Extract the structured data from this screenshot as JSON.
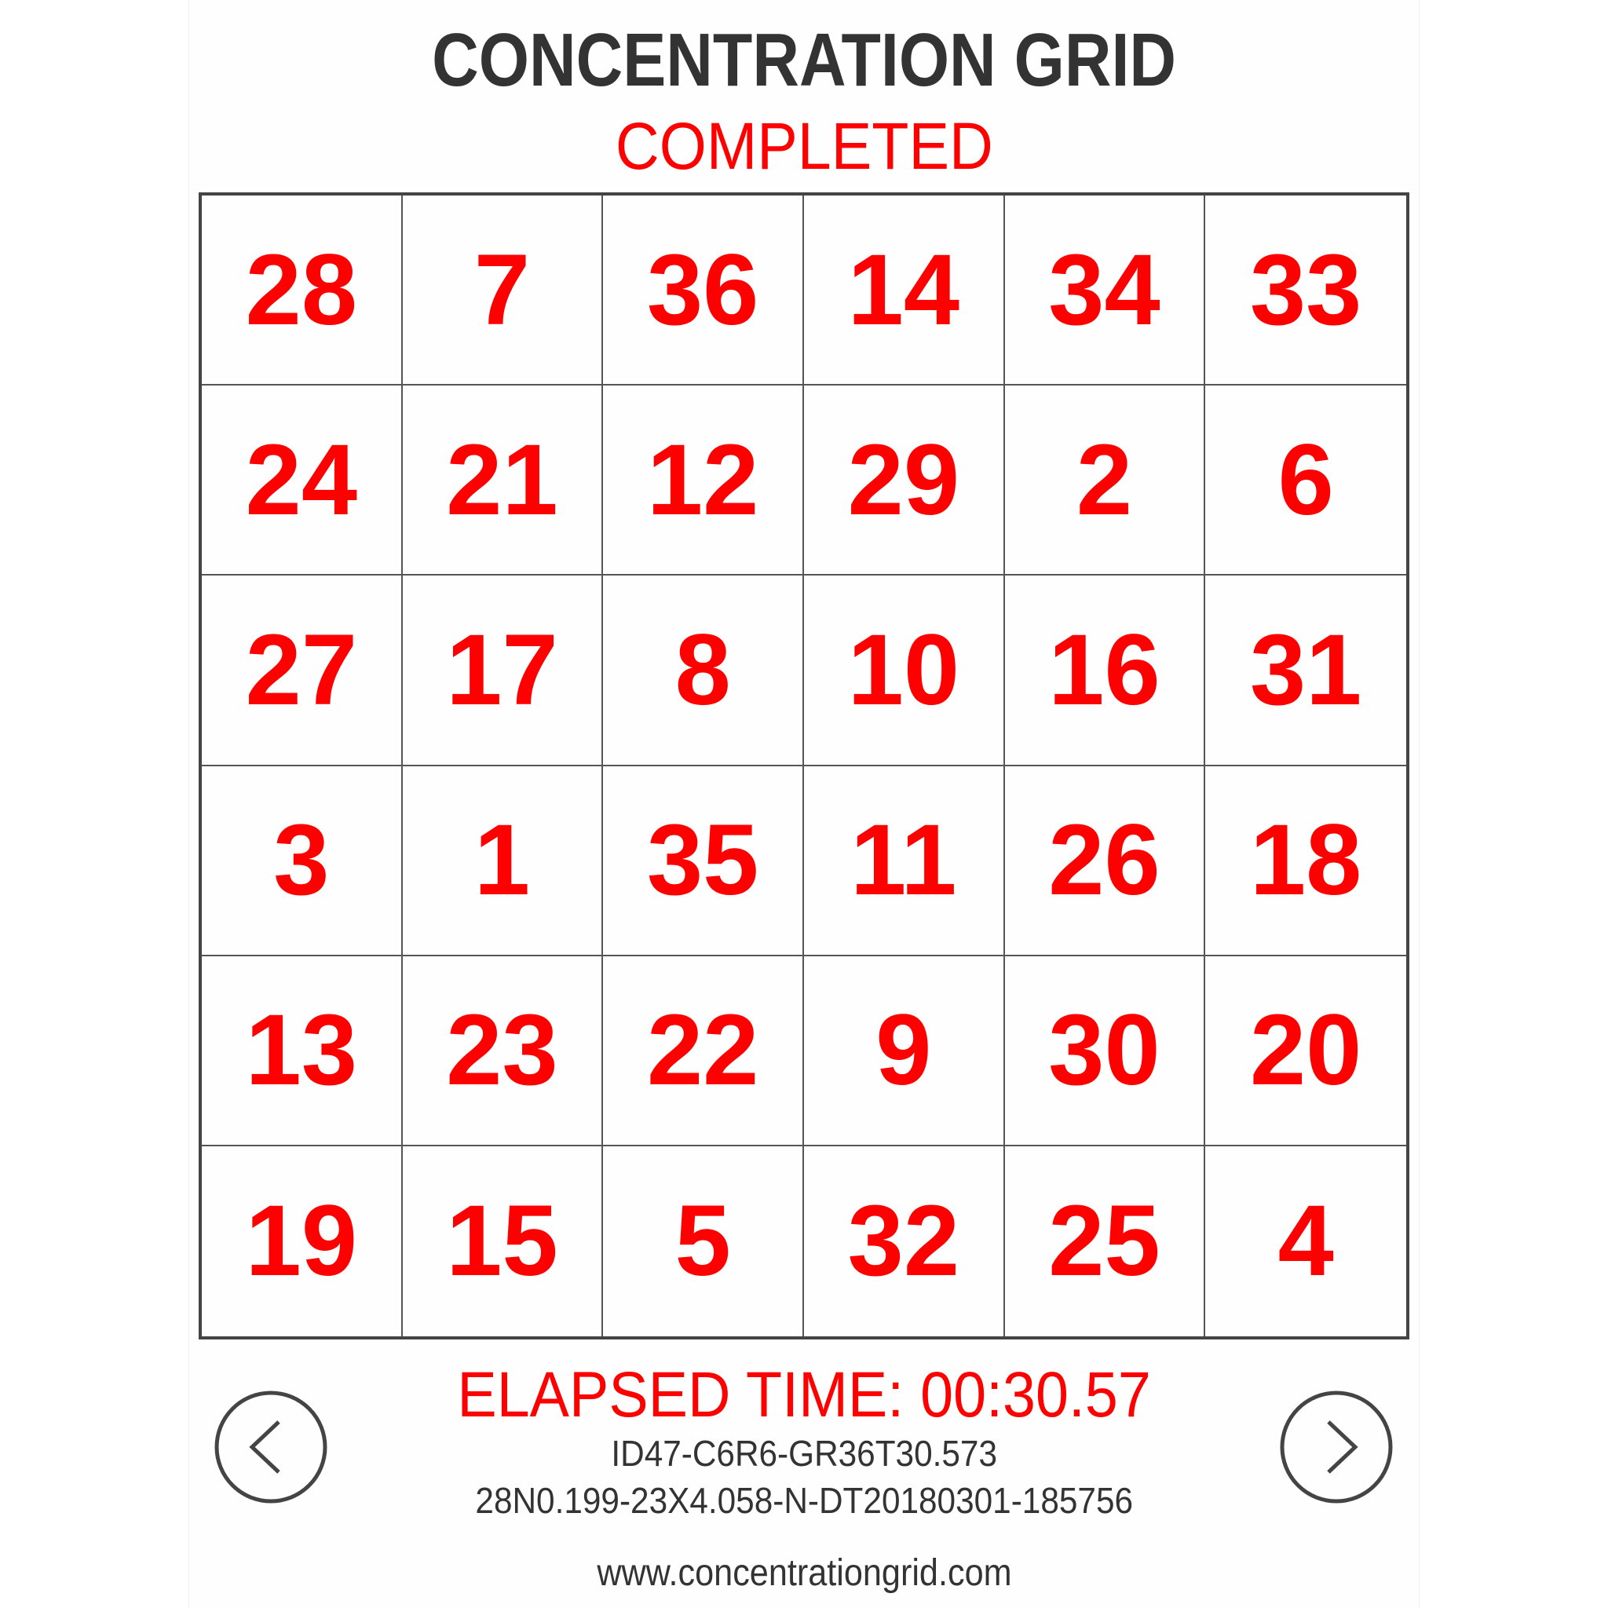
{
  "header": {
    "title": "CONCENTRATION GRID",
    "status": "COMPLETED"
  },
  "grid": {
    "columns": 6,
    "rows": 6,
    "cells": [
      [
        "28",
        "7",
        "36",
        "14",
        "34",
        "33"
      ],
      [
        "24",
        "21",
        "12",
        "29",
        "2",
        "6"
      ],
      [
        "27",
        "17",
        "8",
        "10",
        "16",
        "31"
      ],
      [
        "3",
        "1",
        "35",
        "11",
        "26",
        "18"
      ],
      [
        "13",
        "23",
        "22",
        "9",
        "30",
        "20"
      ],
      [
        "19",
        "15",
        "5",
        "32",
        "25",
        "4"
      ]
    ]
  },
  "footer": {
    "elapsed_time": "ELAPSED TIME: 00:30.57",
    "id_line_1": "ID47-C6R6-GR36T30.573",
    "id_line_2": "28N0.199-23X4.058-N-DT20180301-185756",
    "website": "www.concentrationgrid.com"
  },
  "navigation": {
    "previous_icon": "chevron-left-circle-icon",
    "next_icon": "chevron-right-circle-icon"
  },
  "colors": {
    "accent": "#ff0000",
    "text": "#333333",
    "grid_line": "#555555"
  }
}
